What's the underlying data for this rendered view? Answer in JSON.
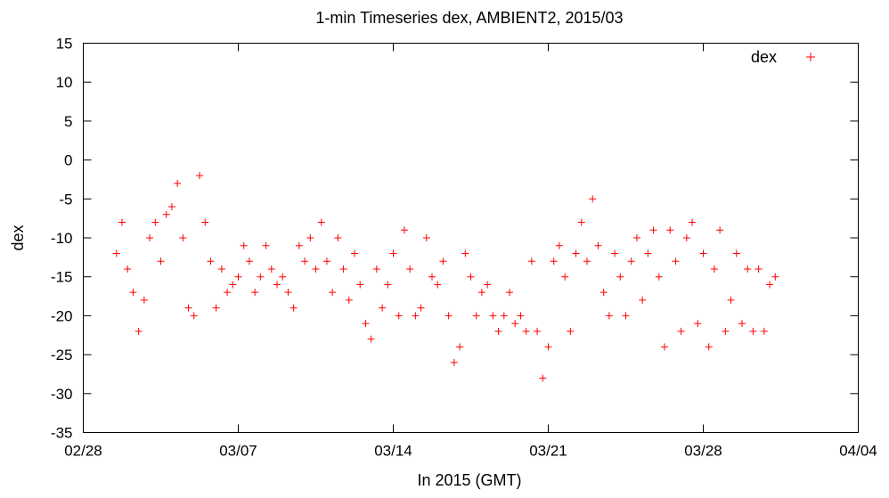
{
  "chart_data": {
    "type": "scatter",
    "title": "1-min Timeseries dex, AMBIENT2, 2015/03",
    "xlabel": "In 2015 (GMT)",
    "ylabel": "dex",
    "x_range": [
      "2015-02-28",
      "2015-04-04"
    ],
    "ylim": [
      -35,
      15
    ],
    "y_ticks": [
      "15",
      "10",
      "5",
      "0",
      "-5",
      "-10",
      "-15",
      "-20",
      "-25",
      "-30",
      "-35"
    ],
    "x_ticks": [
      "02/28",
      "03/07",
      "03/14",
      "03/21",
      "03/28",
      "04/04"
    ],
    "x_tick_dates": [
      "2015-02-28",
      "2015-03-07",
      "2015-03-14",
      "2015-03-21",
      "2015-03-28",
      "2015-04-04"
    ],
    "legend_position": "top-right",
    "marker": "+",
    "grid": false,
    "series": [
      {
        "name": "dex",
        "color": "#ff0000",
        "points": [
          [
            "2015-03-01 12:00",
            -12
          ],
          [
            "2015-03-01 18:00",
            -8
          ],
          [
            "2015-03-02 00:00",
            -14
          ],
          [
            "2015-03-02 06:00",
            -17
          ],
          [
            "2015-03-02 12:00",
            -22
          ],
          [
            "2015-03-02 18:00",
            -18
          ],
          [
            "2015-03-03 00:00",
            -10
          ],
          [
            "2015-03-03 06:00",
            -8
          ],
          [
            "2015-03-03 12:00",
            -13
          ],
          [
            "2015-03-03 18:00",
            -7
          ],
          [
            "2015-03-04 00:00",
            -6
          ],
          [
            "2015-03-04 06:00",
            -3
          ],
          [
            "2015-03-04 12:00",
            -10
          ],
          [
            "2015-03-04 18:00",
            -19
          ],
          [
            "2015-03-05 00:00",
            -20
          ],
          [
            "2015-03-05 06:00",
            -2
          ],
          [
            "2015-03-05 12:00",
            -8
          ],
          [
            "2015-03-05 18:00",
            -13
          ],
          [
            "2015-03-06 00:00",
            -19
          ],
          [
            "2015-03-06 06:00",
            -14
          ],
          [
            "2015-03-06 12:00",
            -17
          ],
          [
            "2015-03-06 18:00",
            -16
          ],
          [
            "2015-03-07 00:00",
            -15
          ],
          [
            "2015-03-07 06:00",
            -11
          ],
          [
            "2015-03-07 12:00",
            -13
          ],
          [
            "2015-03-07 18:00",
            -17
          ],
          [
            "2015-03-08 00:00",
            -15
          ],
          [
            "2015-03-08 06:00",
            -11
          ],
          [
            "2015-03-08 12:00",
            -14
          ],
          [
            "2015-03-08 18:00",
            -16
          ],
          [
            "2015-03-09 00:00",
            -15
          ],
          [
            "2015-03-09 06:00",
            -17
          ],
          [
            "2015-03-09 12:00",
            -19
          ],
          [
            "2015-03-09 18:00",
            -11
          ],
          [
            "2015-03-10 00:00",
            -13
          ],
          [
            "2015-03-10 06:00",
            -10
          ],
          [
            "2015-03-10 12:00",
            -14
          ],
          [
            "2015-03-10 18:00",
            -8
          ],
          [
            "2015-03-11 00:00",
            -13
          ],
          [
            "2015-03-11 06:00",
            -17
          ],
          [
            "2015-03-11 12:00",
            -10
          ],
          [
            "2015-03-11 18:00",
            -14
          ],
          [
            "2015-03-12 00:00",
            -18
          ],
          [
            "2015-03-12 06:00",
            -12
          ],
          [
            "2015-03-12 12:00",
            -16
          ],
          [
            "2015-03-12 18:00",
            -21
          ],
          [
            "2015-03-13 00:00",
            -23
          ],
          [
            "2015-03-13 06:00",
            -14
          ],
          [
            "2015-03-13 12:00",
            -19
          ],
          [
            "2015-03-13 18:00",
            -16
          ],
          [
            "2015-03-14 00:00",
            -12
          ],
          [
            "2015-03-14 06:00",
            -20
          ],
          [
            "2015-03-14 12:00",
            -9
          ],
          [
            "2015-03-14 18:00",
            -14
          ],
          [
            "2015-03-15 00:00",
            -20
          ],
          [
            "2015-03-15 06:00",
            -19
          ],
          [
            "2015-03-15 12:00",
            -10
          ],
          [
            "2015-03-15 18:00",
            -15
          ],
          [
            "2015-03-16 00:00",
            -16
          ],
          [
            "2015-03-16 06:00",
            -13
          ],
          [
            "2015-03-16 12:00",
            -20
          ],
          [
            "2015-03-16 18:00",
            -26
          ],
          [
            "2015-03-17 00:00",
            -24
          ],
          [
            "2015-03-17 06:00",
            -12
          ],
          [
            "2015-03-17 12:00",
            -15
          ],
          [
            "2015-03-17 18:00",
            -20
          ],
          [
            "2015-03-18 00:00",
            -17
          ],
          [
            "2015-03-18 06:00",
            -16
          ],
          [
            "2015-03-18 12:00",
            -20
          ],
          [
            "2015-03-18 18:00",
            -22
          ],
          [
            "2015-03-19 00:00",
            -20
          ],
          [
            "2015-03-19 06:00",
            -17
          ],
          [
            "2015-03-19 12:00",
            -21
          ],
          [
            "2015-03-19 18:00",
            -20
          ],
          [
            "2015-03-20 00:00",
            -22
          ],
          [
            "2015-03-20 06:00",
            -13
          ],
          [
            "2015-03-20 12:00",
            -22
          ],
          [
            "2015-03-20 18:00",
            -28
          ],
          [
            "2015-03-21 00:00",
            -24
          ],
          [
            "2015-03-21 06:00",
            -13
          ],
          [
            "2015-03-21 12:00",
            -11
          ],
          [
            "2015-03-21 18:00",
            -15
          ],
          [
            "2015-03-22 00:00",
            -22
          ],
          [
            "2015-03-22 06:00",
            -12
          ],
          [
            "2015-03-22 12:00",
            -8
          ],
          [
            "2015-03-22 18:00",
            -13
          ],
          [
            "2015-03-23 00:00",
            -5
          ],
          [
            "2015-03-23 06:00",
            -11
          ],
          [
            "2015-03-23 12:00",
            -17
          ],
          [
            "2015-03-23 18:00",
            -20
          ],
          [
            "2015-03-24 00:00",
            -12
          ],
          [
            "2015-03-24 06:00",
            -15
          ],
          [
            "2015-03-24 12:00",
            -20
          ],
          [
            "2015-03-24 18:00",
            -13
          ],
          [
            "2015-03-25 00:00",
            -10
          ],
          [
            "2015-03-25 06:00",
            -18
          ],
          [
            "2015-03-25 12:00",
            -12
          ],
          [
            "2015-03-25 18:00",
            -9
          ],
          [
            "2015-03-26 00:00",
            -15
          ],
          [
            "2015-03-26 06:00",
            -24
          ],
          [
            "2015-03-26 12:00",
            -9
          ],
          [
            "2015-03-26 18:00",
            -13
          ],
          [
            "2015-03-27 00:00",
            -22
          ],
          [
            "2015-03-27 06:00",
            -10
          ],
          [
            "2015-03-27 12:00",
            -8
          ],
          [
            "2015-03-27 18:00",
            -21
          ],
          [
            "2015-03-28 00:00",
            -12
          ],
          [
            "2015-03-28 06:00",
            -24
          ],
          [
            "2015-03-28 12:00",
            -14
          ],
          [
            "2015-03-28 18:00",
            -9
          ],
          [
            "2015-03-29 00:00",
            -22
          ],
          [
            "2015-03-29 06:00",
            -18
          ],
          [
            "2015-03-29 12:00",
            -12
          ],
          [
            "2015-03-29 18:00",
            -21
          ],
          [
            "2015-03-30 00:00",
            -14
          ],
          [
            "2015-03-30 06:00",
            -22
          ],
          [
            "2015-03-30 12:00",
            -14
          ],
          [
            "2015-03-30 18:00",
            -22
          ],
          [
            "2015-03-31 00:00",
            -16
          ],
          [
            "2015-03-31 06:00",
            -15
          ]
        ]
      }
    ]
  }
}
